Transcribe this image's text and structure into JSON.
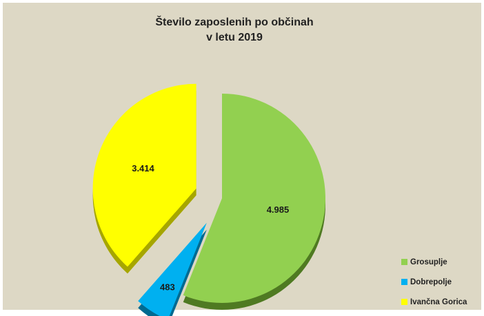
{
  "chart_data": {
    "type": "pie",
    "title": "Število zaposlenih po občinah v letu 2019",
    "title_lines": [
      "Število zaposlenih po občinah",
      "v letu 2019"
    ],
    "legend_position": "bottom-right",
    "exploded": true,
    "three_d": true,
    "slices": [
      {
        "name": "Grosupljе",
        "value": 4985,
        "label": "4.985",
        "color": "#92d050",
        "side_color": "#4f7a22"
      },
      {
        "name": "Dobrepolje",
        "value": 483,
        "label": "483",
        "color": "#00b0f0",
        "side_color": "#006a91"
      },
      {
        "name": "Ivančna Gorica",
        "value": 3414,
        "label": "3.414",
        "color": "#ffff00",
        "side_color": "#a6a600"
      }
    ]
  }
}
